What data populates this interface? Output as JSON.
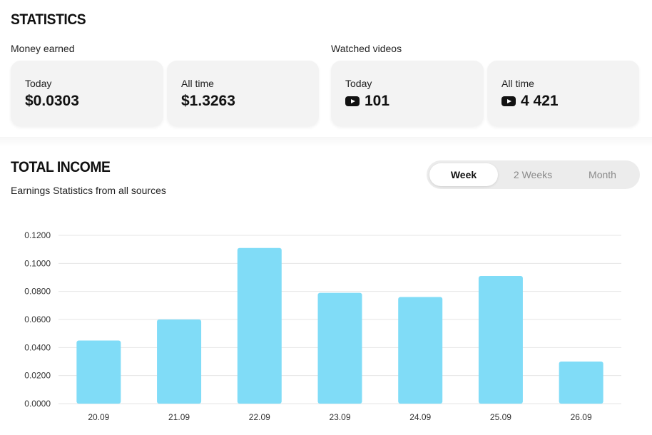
{
  "statistics": {
    "title": "STATISTICS",
    "money": {
      "label": "Money earned",
      "today_label": "Today",
      "today_value": "$0.0303",
      "alltime_label": "All time",
      "alltime_value": "$1.3263"
    },
    "videos": {
      "label": "Watched videos",
      "today_label": "Today",
      "today_value": "101",
      "alltime_label": "All time",
      "alltime_value": "4 421",
      "icon": "youtube-play-icon"
    }
  },
  "income": {
    "title": "TOTAL INCOME",
    "subtitle": "Earnings Statistics from all sources",
    "tabs": [
      {
        "label": "Week",
        "active": true
      },
      {
        "label": "2 Weeks",
        "active": false
      },
      {
        "label": "Month",
        "active": false
      }
    ]
  },
  "colors": {
    "bar": "#80dcf7",
    "accent_text": "#111111"
  },
  "chart_data": {
    "type": "bar",
    "categories": [
      "20.09",
      "21.09",
      "22.09",
      "23.09",
      "24.09",
      "25.09",
      "26.09"
    ],
    "values": [
      0.045,
      0.06,
      0.111,
      0.079,
      0.076,
      0.091,
      0.03
    ],
    "yticks": [
      "0.0000",
      "0.0200",
      "0.0400",
      "0.0600",
      "0.0800",
      "0.1000",
      "0.1200"
    ],
    "ylim": [
      0,
      0.12
    ],
    "grid": true,
    "title": "",
    "xlabel": "",
    "ylabel": ""
  }
}
